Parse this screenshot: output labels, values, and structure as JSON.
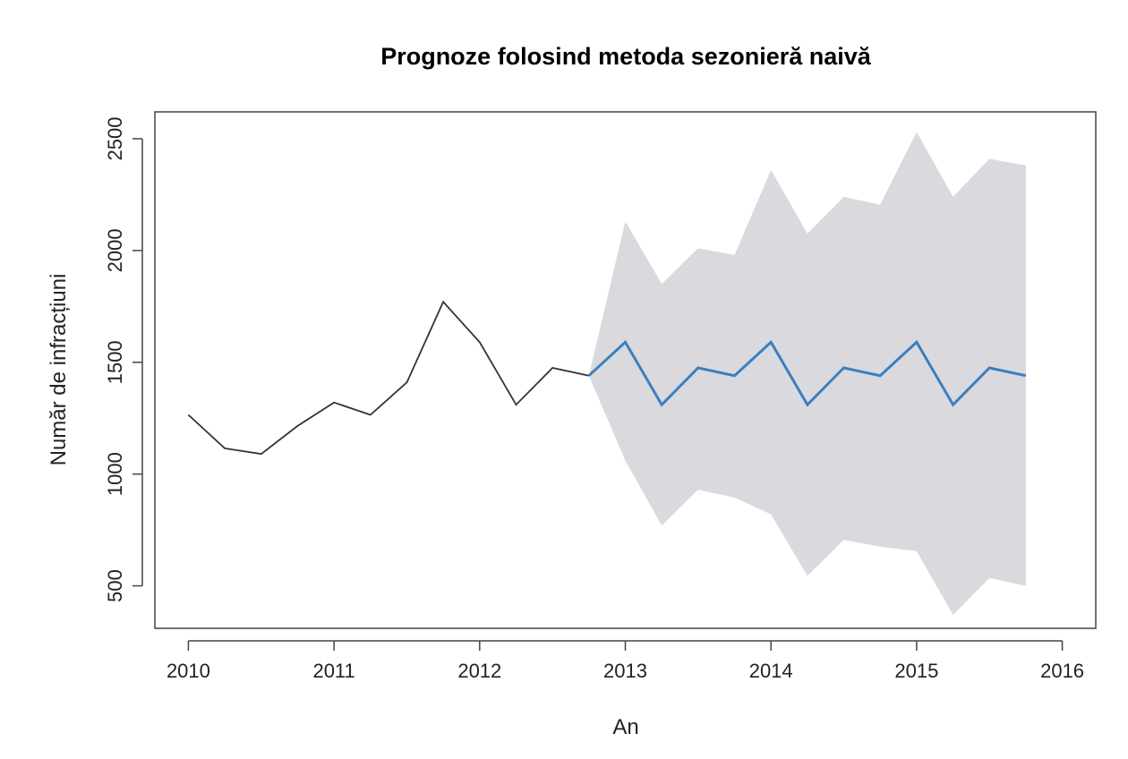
{
  "chart_data": {
    "type": "line",
    "title": "Prognoze folosind metoda sezonieră naivă",
    "xlabel": "An",
    "ylabel": "Număr de infracțiuni",
    "xlim": [
      2009.77,
      2016.23
    ],
    "ylim": [
      310,
      2620
    ],
    "x_ticks": [
      2010,
      2011,
      2012,
      2013,
      2014,
      2015,
      2016
    ],
    "y_ticks": [
      500,
      1000,
      1500,
      2000,
      2500
    ],
    "x_tick_labels": [
      "2010",
      "2011",
      "2012",
      "2013",
      "2014",
      "2015",
      "2016"
    ],
    "y_tick_labels": [
      "500",
      "1000",
      "1500",
      "2000",
      "2500"
    ],
    "grid": false,
    "colors": {
      "observed": "#333333",
      "forecast": "#3a7fbf",
      "interval": "#d9d9de",
      "frame": "#444444"
    },
    "series": [
      {
        "role": "observed",
        "x": [
          2010.0,
          2010.25,
          2010.5,
          2010.75,
          2011.0,
          2011.25,
          2011.5,
          2011.75,
          2012.0,
          2012.25,
          2012.5,
          2012.75
        ],
        "values": [
          1265,
          1115,
          1090,
          1215,
          1320,
          1265,
          1410,
          1770,
          1590,
          1310,
          1475,
          1440
        ]
      },
      {
        "role": "forecast",
        "x": [
          2012.75,
          2013.0,
          2013.25,
          2013.5,
          2013.75,
          2014.0,
          2014.25,
          2014.5,
          2014.75,
          2015.0,
          2015.25,
          2015.5,
          2015.75
        ],
        "values": [
          1440,
          1590,
          1310,
          1475,
          1440,
          1590,
          1310,
          1475,
          1440,
          1590,
          1310,
          1475,
          1440
        ]
      }
    ],
    "interval": {
      "x": [
        2012.75,
        2013.0,
        2013.25,
        2013.5,
        2013.75,
        2014.0,
        2014.25,
        2014.5,
        2014.75,
        2015.0,
        2015.25,
        2015.5,
        2015.75
      ],
      "upper": [
        1440,
        2130,
        1850,
        2010,
        1980,
        2360,
        2075,
        2240,
        2205,
        2530,
        2240,
        2410,
        2380
      ],
      "lower": [
        1440,
        1060,
        770,
        930,
        895,
        820,
        545,
        705,
        675,
        655,
        370,
        535,
        500
      ]
    }
  }
}
